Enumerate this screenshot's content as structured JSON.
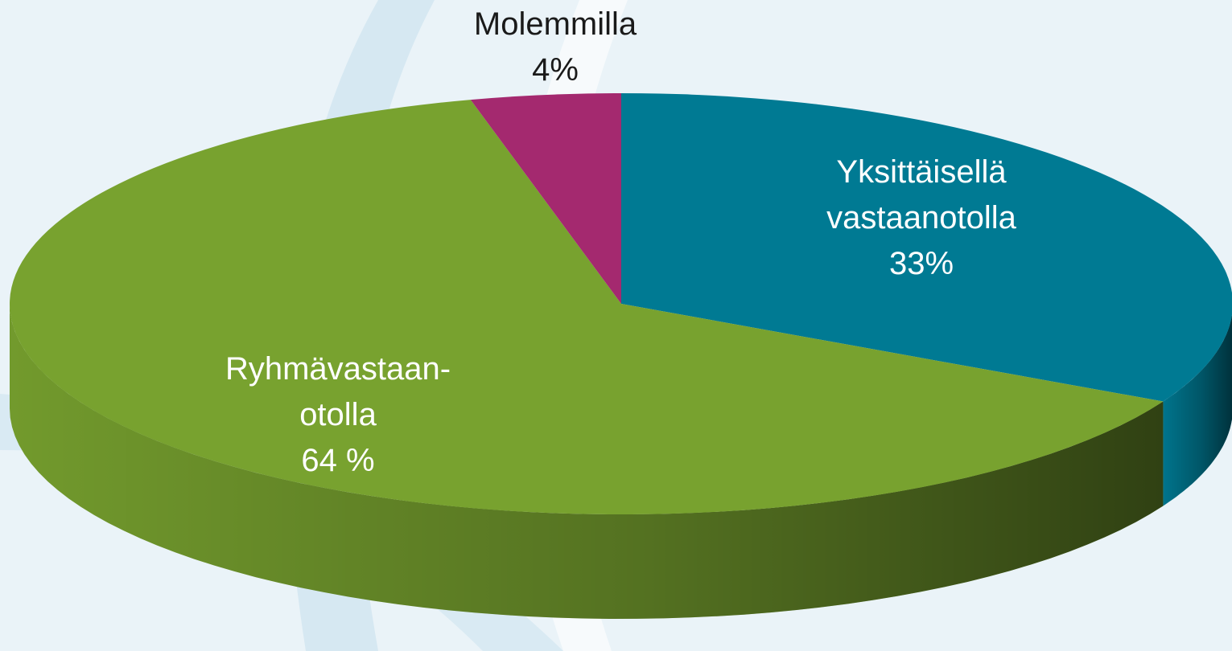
{
  "chart_data": {
    "type": "pie",
    "categories": [
      "Yksittäisellä vastaanotolla",
      "Ryhmävastaan-otolla",
      "Molemmilla"
    ],
    "values": [
      33,
      64,
      4
    ],
    "value_labels": [
      "33%",
      "64 %",
      "4%"
    ],
    "colors": [
      "#007a93",
      "#78a22f",
      "#a4296f"
    ]
  }
}
